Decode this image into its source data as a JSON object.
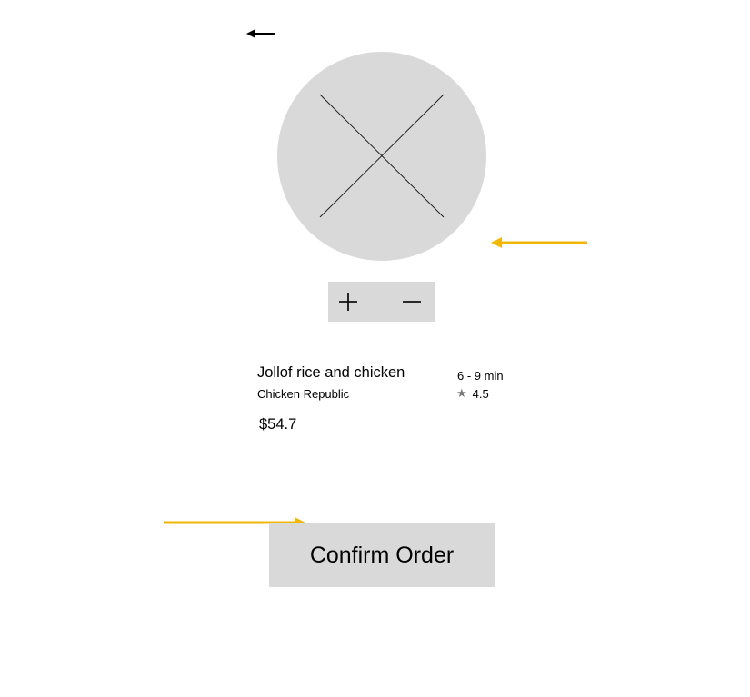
{
  "header": {
    "back_icon": "arrow-left-icon"
  },
  "product": {
    "image_icon": "image-placeholder-icon",
    "title": "Jollof rice and chicken",
    "restaurant": "Chicken Republic",
    "delivery_time": "6 - 9 min",
    "rating": "4.5",
    "rating_icon": "star-icon",
    "price": "$54.7"
  },
  "quantity_stepper": {
    "increase_icon": "plus-icon",
    "decrease_icon": "minus-icon"
  },
  "actions": {
    "confirm_label": "Confirm Order"
  },
  "colors": {
    "placeholder_gray": "#d9d9d9",
    "annotation_yellow": "#f2b705",
    "text": "#000000",
    "star_gray": "#777777"
  }
}
